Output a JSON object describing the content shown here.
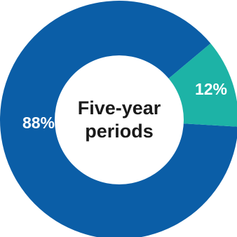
{
  "chart_data": {
    "type": "pie",
    "variant": "donut",
    "center_label": [
      "Five-year",
      "periods"
    ],
    "slices": [
      {
        "label": "88%",
        "value": 88,
        "color": "#0b5ea7"
      },
      {
        "label": "12%",
        "value": 12,
        "color": "#1db3a6"
      }
    ],
    "start_angle_deg": -60,
    "direction": "clockwise_after_first"
  }
}
